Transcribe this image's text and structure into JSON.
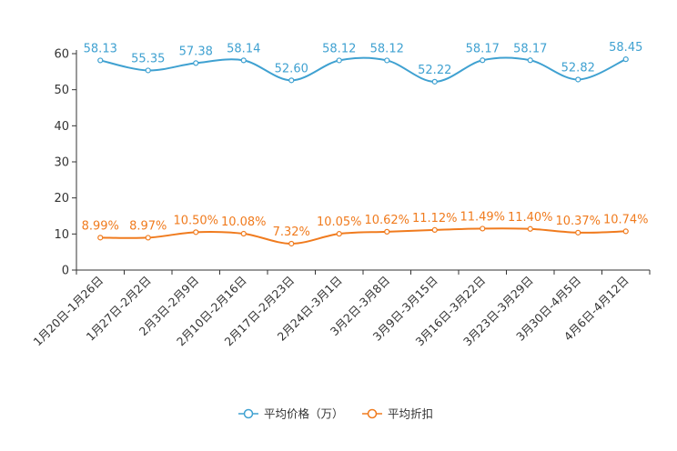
{
  "chart_data": {
    "type": "line",
    "categories": [
      "1月20日-1月26日",
      "1月27日-2月2日",
      "2月3日-2月9日",
      "2月10日-2月16日",
      "2月17日-2月23日",
      "2月24日-3月1日",
      "3月2日-3月8日",
      "3月9日-3月15日",
      "3月16日-3月22日",
      "3月23日-3月29日",
      "3月30日-4月5日",
      "4月6日-4月12日"
    ],
    "series": [
      {
        "name": "平均价格（万）",
        "color": "#3fa1d1",
        "values": [
          58.13,
          55.35,
          57.38,
          58.14,
          52.6,
          58.12,
          58.12,
          52.22,
          58.17,
          58.17,
          52.82,
          58.45
        ],
        "labels": [
          "58.13",
          "55.35",
          "57.38",
          "58.14",
          "52.60",
          "58.12",
          "58.12",
          "52.22",
          "58.17",
          "58.17",
          "52.82",
          "58.45"
        ]
      },
      {
        "name": "平均折扣",
        "color": "#f07b1e",
        "values": [
          8.99,
          8.97,
          10.5,
          10.08,
          7.32,
          10.05,
          10.62,
          11.12,
          11.49,
          11.4,
          10.37,
          10.74
        ],
        "labels": [
          "8.99%",
          "8.97%",
          "10.50%",
          "10.08%",
          "7.32%",
          "10.05%",
          "10.62%",
          "11.12%",
          "11.49%",
          "11.40%",
          "10.37%",
          "10.74%"
        ]
      }
    ],
    "ylim": [
      0,
      60
    ],
    "yticks": [
      0,
      10,
      20,
      30,
      40,
      50,
      60
    ],
    "title": "",
    "xlabel": "",
    "ylabel": "",
    "grid": false,
    "legend_position": "bottom-center"
  }
}
